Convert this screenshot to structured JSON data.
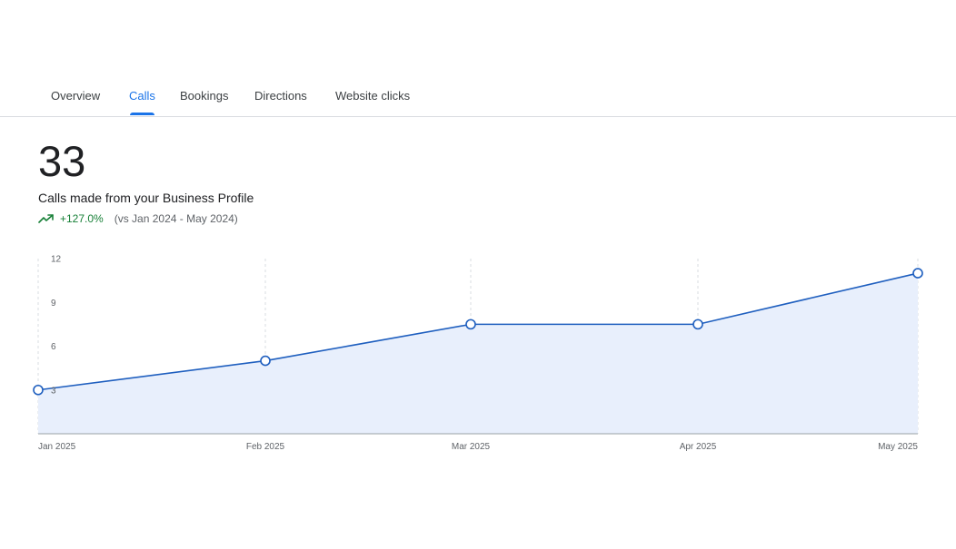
{
  "tabs": [
    {
      "label": "Overview",
      "active": false
    },
    {
      "label": "Calls",
      "active": true
    },
    {
      "label": "Bookings",
      "active": false
    },
    {
      "label": "Directions",
      "active": false
    },
    {
      "label": "Website clicks",
      "active": false
    }
  ],
  "metric": {
    "value": "33",
    "description": "Calls made from your Business Profile",
    "change": "+127.0%",
    "comparison": "(vs Jan 2024 - May 2024)",
    "trend_icon": "trending-up-icon"
  },
  "colors": {
    "accent": "#1a73e8",
    "line": "#1f5fbf",
    "area": "#e8effc",
    "positive": "#188038"
  },
  "chart_data": {
    "type": "area",
    "categories": [
      "Jan 2025",
      "Feb 2025",
      "Mar 2025",
      "Apr 2025",
      "May 2025"
    ],
    "values": [
      3,
      5,
      7.5,
      7.5,
      11
    ],
    "y_ticks": [
      3,
      6,
      9,
      12
    ],
    "ylim": [
      0,
      12
    ],
    "grid": "vertical-dashed"
  }
}
